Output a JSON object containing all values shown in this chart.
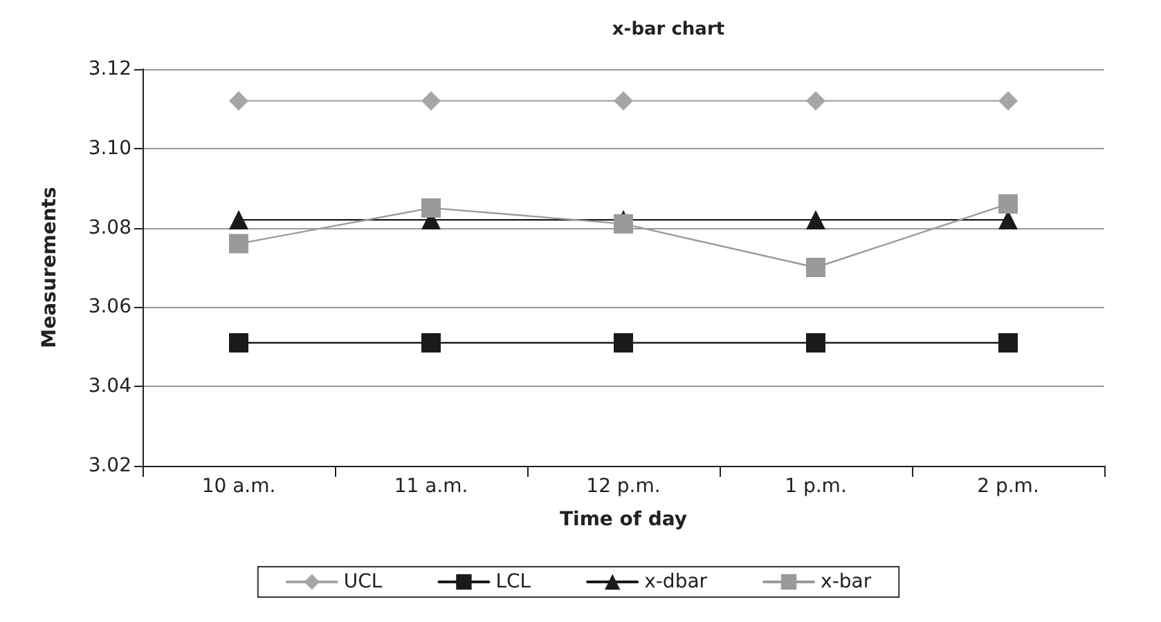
{
  "chart_data": {
    "type": "line",
    "title": "x-bar chart",
    "xlabel": "Time of day",
    "ylabel": "Measurements",
    "categories": [
      "10 a.m.",
      "11 a.m.",
      "12 p.m.",
      "1 p.m.",
      "2 p.m."
    ],
    "series": [
      {
        "name": "UCL",
        "color": "#a6a6a6",
        "marker": "diamond",
        "values": [
          3.112,
          3.112,
          3.112,
          3.112,
          3.112
        ]
      },
      {
        "name": "LCL",
        "color": "#1a1a1a",
        "marker": "square",
        "values": [
          3.051,
          3.051,
          3.051,
          3.051,
          3.051
        ]
      },
      {
        "name": "x-dbar",
        "color": "#1a1a1a",
        "marker": "triangle",
        "values": [
          3.082,
          3.082,
          3.082,
          3.082,
          3.082
        ]
      },
      {
        "name": "x-bar",
        "color": "#9a9a9a",
        "marker": "square",
        "values": [
          3.076,
          3.085,
          3.081,
          3.07,
          3.086
        ]
      }
    ],
    "ylim": [
      3.02,
      3.12
    ],
    "yticks": [
      3.02,
      3.04,
      3.06,
      3.08,
      {
        "value": 3.1,
        "label": "3.10"
      },
      3.12
    ],
    "grid": "y",
    "legend": "bottom",
    "line_style": "solid"
  }
}
